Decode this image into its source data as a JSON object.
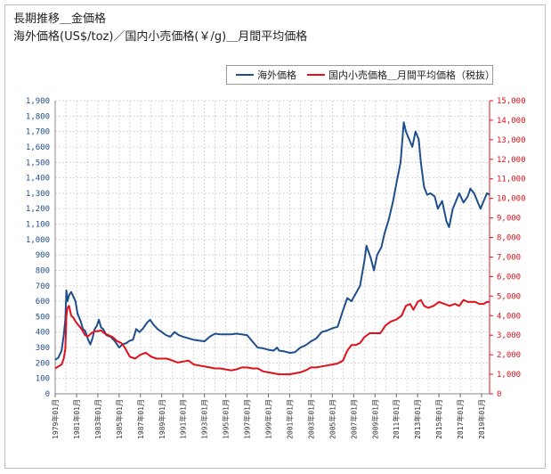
{
  "header": {
    "title_line1": "長期推移＿金価格",
    "title_line2": "海外価格(US$/toz)／国内小売価格(￥/g)＿月間平均価格"
  },
  "legend": {
    "series1": "海外価格",
    "series2": "国内小売価格＿月間平均価格（税抜）"
  },
  "colors": {
    "series1": "#1f4e8c",
    "series2": "#e0101a",
    "grid": "#c8c8c8"
  },
  "chart_data": {
    "type": "line",
    "title": "長期推移＿金価格",
    "subtitle": "海外価格(US$/toz)／国内小売価格(￥/g)＿月間平均価格",
    "y_left_range": [
      0,
      1900
    ],
    "y_left_ticks": [
      "0",
      "100",
      "200",
      "300",
      "400",
      "500",
      "600",
      "700",
      "800",
      "900",
      "1,000",
      "1,100",
      "1,200",
      "1,300",
      "1,400",
      "1,500",
      "1,600",
      "1,700",
      "1,800",
      "1,900"
    ],
    "y_right_range": [
      0,
      15000
    ],
    "y_right_ticks": [
      "0",
      "1,000",
      "2,000",
      "3,000",
      "4,000",
      "5,000",
      "6,000",
      "7,000",
      "8,000",
      "9,000",
      "10,000",
      "11,000",
      "12,000",
      "13,000",
      "14,000",
      "15,000"
    ],
    "x_range": [
      1979.0,
      2019.75
    ],
    "x_tick_labels": [
      "1979年01月",
      "1981年01月",
      "1983年01月",
      "1985年01月",
      "1987年01月",
      "1989年01月",
      "1991年01月",
      "1993年01月",
      "1995年01月",
      "1997年01月",
      "1999年01月",
      "2001年01月",
      "2003年01月",
      "2005年01月",
      "2007年01月",
      "2009年01月",
      "2011年01月",
      "2013年01月",
      "2015年01月",
      "2017年01月",
      "2019年01月"
    ],
    "series": [
      {
        "name": "海外価格",
        "axis": "left",
        "x": [
          1979.0,
          1979.3,
          1979.6,
          1979.8,
          1979.95,
          1980.05,
          1980.15,
          1980.3,
          1980.5,
          1980.7,
          1980.9,
          1981.1,
          1981.4,
          1981.6,
          1981.8,
          1982.1,
          1982.3,
          1982.5,
          1982.7,
          1982.9,
          1983.1,
          1983.3,
          1983.5,
          1983.8,
          1984.2,
          1984.6,
          1985.0,
          1985.3,
          1985.7,
          1986.0,
          1986.3,
          1986.6,
          1986.9,
          1987.2,
          1987.6,
          1987.9,
          1988.2,
          1988.6,
          1989.0,
          1989.4,
          1989.8,
          1990.2,
          1990.6,
          1991.0,
          1991.5,
          1992.0,
          1992.5,
          1993.0,
          1993.5,
          1994.0,
          1994.5,
          1995.0,
          1995.5,
          1996.0,
          1996.5,
          1997.0,
          1997.5,
          1998.0,
          1998.5,
          1999.0,
          1999.5,
          1999.8,
          2000.0,
          2000.5,
          2001.0,
          2001.5,
          2002.0,
          2002.5,
          2003.0,
          2003.5,
          2004.0,
          2004.5,
          2005.0,
          2005.5,
          2006.0,
          2006.4,
          2006.8,
          2007.2,
          2007.6,
          2008.0,
          2008.2,
          2008.6,
          2008.9,
          2009.2,
          2009.6,
          2009.9,
          2010.3,
          2010.7,
          2011.0,
          2011.4,
          2011.7,
          2011.9,
          2012.2,
          2012.5,
          2012.8,
          2013.1,
          2013.3,
          2013.6,
          2013.9,
          2014.2,
          2014.6,
          2014.9,
          2015.3,
          2015.7,
          2015.95,
          2016.3,
          2016.6,
          2016.9,
          2017.3,
          2017.7,
          2017.95,
          2018.3,
          2018.6,
          2018.9,
          2019.2,
          2019.5,
          2019.75
        ],
        "values": [
          220,
          235,
          280,
          380,
          480,
          670,
          600,
          640,
          660,
          630,
          600,
          520,
          470,
          420,
          410,
          350,
          320,
          360,
          420,
          440,
          480,
          430,
          420,
          380,
          370,
          340,
          300,
          320,
          330,
          345,
          350,
          420,
          400,
          420,
          460,
          480,
          450,
          420,
          400,
          380,
          370,
          400,
          380,
          370,
          360,
          350,
          345,
          340,
          370,
          390,
          385,
          385,
          385,
          390,
          385,
          380,
          340,
          300,
          295,
          285,
          280,
          300,
          280,
          275,
          265,
          270,
          300,
          315,
          340,
          360,
          400,
          410,
          425,
          435,
          540,
          620,
          600,
          650,
          700,
          860,
          960,
          880,
          800,
          900,
          950,
          1040,
          1130,
          1250,
          1360,
          1500,
          1760,
          1700,
          1650,
          1600,
          1700,
          1650,
          1500,
          1340,
          1290,
          1300,
          1280,
          1200,
          1250,
          1120,
          1080,
          1200,
          1250,
          1300,
          1240,
          1280,
          1330,
          1300,
          1250,
          1200,
          1250,
          1300,
          1290
        ]
      },
      {
        "name": "国内小売価格＿月間平均価格（税抜）",
        "axis": "right",
        "x": [
          1979.0,
          1979.3,
          1979.6,
          1979.8,
          1979.95,
          1980.05,
          1980.15,
          1980.3,
          1980.5,
          1980.7,
          1980.9,
          1981.2,
          1981.5,
          1981.8,
          1982.1,
          1982.4,
          1982.7,
          1983.0,
          1983.3,
          1983.6,
          1984.0,
          1984.4,
          1984.8,
          1985.2,
          1985.5,
          1985.8,
          1986.0,
          1986.5,
          1987.0,
          1987.5,
          1988.0,
          1988.5,
          1989.0,
          1989.5,
          1990.0,
          1990.5,
          1991.0,
          1991.5,
          1992.0,
          1992.5,
          1993.0,
          1993.5,
          1994.0,
          1994.5,
          1995.0,
          1995.5,
          1996.0,
          1996.5,
          1997.0,
          1997.5,
          1998.0,
          1998.5,
          1999.0,
          1999.5,
          2000.0,
          2000.5,
          2001.0,
          2001.5,
          2002.0,
          2002.5,
          2003.0,
          2003.5,
          2004.0,
          2004.5,
          2005.0,
          2005.5,
          2006.0,
          2006.4,
          2006.8,
          2007.2,
          2007.6,
          2008.0,
          2008.5,
          2009.0,
          2009.5,
          2010.0,
          2010.5,
          2011.0,
          2011.5,
          2011.9,
          2012.3,
          2012.6,
          2013.0,
          2013.3,
          2013.6,
          2014.0,
          2014.5,
          2015.0,
          2015.5,
          2016.0,
          2016.5,
          2016.9,
          2017.3,
          2017.7,
          2018.0,
          2018.4,
          2018.8,
          2019.2,
          2019.5,
          2019.75
        ],
        "values": [
          1300,
          1400,
          1500,
          1800,
          2300,
          4000,
          4400,
          4500,
          4000,
          3900,
          3700,
          3500,
          3300,
          3000,
          2950,
          3100,
          3200,
          3200,
          3250,
          3100,
          3000,
          2900,
          2700,
          2600,
          2400,
          2100,
          1900,
          1800,
          2000,
          2100,
          1900,
          1800,
          1800,
          1800,
          1700,
          1600,
          1650,
          1700,
          1500,
          1450,
          1400,
          1350,
          1300,
          1300,
          1250,
          1200,
          1250,
          1350,
          1350,
          1300,
          1300,
          1150,
          1100,
          1050,
          1000,
          1000,
          1000,
          1050,
          1100,
          1200,
          1350,
          1350,
          1400,
          1450,
          1500,
          1550,
          1700,
          2200,
          2500,
          2500,
          2600,
          2900,
          3100,
          3100,
          3100,
          3500,
          3700,
          3800,
          4000,
          4500,
          4600,
          4300,
          4700,
          4800,
          4500,
          4400,
          4500,
          4700,
          4600,
          4500,
          4600,
          4500,
          4800,
          4700,
          4700,
          4700,
          4600,
          4600,
          4700,
          4700
        ]
      }
    ]
  }
}
